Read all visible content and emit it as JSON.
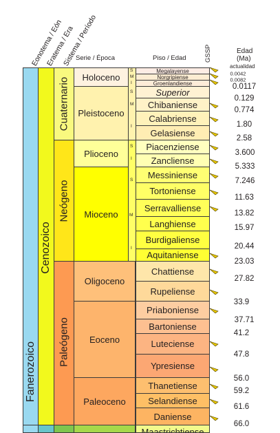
{
  "headers": {
    "eonothem": "Eonotema / Eón",
    "erathem": "Eratema / Era",
    "system": "Sistema / Período",
    "series": "Serie / Época",
    "stage": "Piso / Edad",
    "gssp": "GSSP",
    "age_line1": "Edad",
    "age_line2": "(Ma)"
  },
  "eon": "Fanerozoico",
  "era": "Cenozoico",
  "systems": [
    "Cuaternario",
    "Neógeno",
    "Paleógeno"
  ],
  "series": [
    "Holoceno",
    "Pleistoceno",
    "Plioceno",
    "Mioceno",
    "Oligoceno",
    "Eoceno",
    "Paleoceno"
  ],
  "subdivision_marks": [
    "S",
    "M",
    "I",
    "S",
    "M",
    "I",
    "S",
    "I",
    "S",
    "M",
    "I"
  ],
  "stages": [
    "Megalayense",
    "Norgripiense",
    "Groenlandiense",
    "Superior",
    "Chibaniense",
    "Calabriense",
    "Gelasiense",
    "Piacenziense",
    "Zancliense",
    "Messiniense",
    "Tortoniense",
    "Serravalliense",
    "Langhiense",
    "Burdigaliense",
    "Aquitaniense",
    "Chattiense",
    "Rupeliense",
    "Priaboniense",
    "Bartoniense",
    "Luteciense",
    "Ypresiense",
    "Thanetiense",
    "Selandiense",
    "Daniense",
    "Maastrichtiense"
  ],
  "ages": {
    "present": "actualidad",
    "small": [
      "0.0042",
      "0.0082"
    ],
    "values": [
      "0.0117",
      "0.129",
      "0.774",
      "1.80",
      "2.58",
      "3.600",
      "5.333",
      "7.246",
      "11.63",
      "13.82",
      "15.97",
      "20.44",
      "23.03",
      "27.82",
      "33.9",
      "37.71",
      "41.2",
      "47.8",
      "56.0",
      "59.2",
      "61.6",
      "66.0"
    ]
  },
  "colors": {
    "eon": "#9ad9f0",
    "era": "#f2f91d",
    "quaternary": "#f9f97f",
    "neogene": "#ffe619",
    "paleogene": "#fd9a52",
    "holocene": "#fef2e0",
    "pleistocene": "#fff2ae",
    "pliocene": "#ffff99",
    "miocene": "#ffff00",
    "oligocene": "#fec07a",
    "eocene": "#fdb46c",
    "paleocene": "#fda75f",
    "gssp_mark": "#e8c800",
    "mesozoic": "#67c5ca"
  },
  "chart_data": {
    "type": "table",
    "title": "",
    "columns": [
      "Eonotema / Eón",
      "Eratema / Era",
      "Sistema / Período",
      "Serie / Época",
      "Piso / Edad",
      "GSSP",
      "Edad (Ma)"
    ],
    "rows": [
      {
        "eon": "Fanerozoico",
        "era": "Cenozoico",
        "system": "Cuaternario",
        "series": "Holoceno",
        "stage": "Megalayense",
        "base_age": "0.0042"
      },
      {
        "eon": "Fanerozoico",
        "era": "Cenozoico",
        "system": "Cuaternario",
        "series": "Holoceno",
        "stage": "Norgripiense",
        "base_age": "0.0082"
      },
      {
        "eon": "Fanerozoico",
        "era": "Cenozoico",
        "system": "Cuaternario",
        "series": "Holoceno",
        "stage": "Groenlandiense",
        "base_age": "0.0117"
      },
      {
        "eon": "Fanerozoico",
        "era": "Cenozoico",
        "system": "Cuaternario",
        "series": "Pleistoceno",
        "stage": "Superior",
        "base_age": "0.129"
      },
      {
        "eon": "Fanerozoico",
        "era": "Cenozoico",
        "system": "Cuaternario",
        "series": "Pleistoceno",
        "stage": "Chibaniense",
        "base_age": "0.774"
      },
      {
        "eon": "Fanerozoico",
        "era": "Cenozoico",
        "system": "Cuaternario",
        "series": "Pleistoceno",
        "stage": "Calabriense",
        "base_age": "1.80"
      },
      {
        "eon": "Fanerozoico",
        "era": "Cenozoico",
        "system": "Cuaternario",
        "series": "Pleistoceno",
        "stage": "Gelasiense",
        "base_age": "2.58"
      },
      {
        "eon": "Fanerozoico",
        "era": "Cenozoico",
        "system": "Neógeno",
        "series": "Plioceno",
        "stage": "Piacenziense",
        "base_age": "3.600"
      },
      {
        "eon": "Fanerozoico",
        "era": "Cenozoico",
        "system": "Neógeno",
        "series": "Plioceno",
        "stage": "Zancliense",
        "base_age": "5.333"
      },
      {
        "eon": "Fanerozoico",
        "era": "Cenozoico",
        "system": "Neógeno",
        "series": "Mioceno",
        "stage": "Messiniense",
        "base_age": "7.246"
      },
      {
        "eon": "Fanerozoico",
        "era": "Cenozoico",
        "system": "Neógeno",
        "series": "Mioceno",
        "stage": "Tortoniense",
        "base_age": "11.63"
      },
      {
        "eon": "Fanerozoico",
        "era": "Cenozoico",
        "system": "Neógeno",
        "series": "Mioceno",
        "stage": "Serravalliense",
        "base_age": "13.82"
      },
      {
        "eon": "Fanerozoico",
        "era": "Cenozoico",
        "system": "Neógeno",
        "series": "Mioceno",
        "stage": "Langhiense",
        "base_age": "15.97"
      },
      {
        "eon": "Fanerozoico",
        "era": "Cenozoico",
        "system": "Neógeno",
        "series": "Mioceno",
        "stage": "Burdigaliense",
        "base_age": "20.44"
      },
      {
        "eon": "Fanerozoico",
        "era": "Cenozoico",
        "system": "Neógeno",
        "series": "Mioceno",
        "stage": "Aquitaniense",
        "base_age": "23.03"
      },
      {
        "eon": "Fanerozoico",
        "era": "Cenozoico",
        "system": "Paleógeno",
        "series": "Oligoceno",
        "stage": "Chattiense",
        "base_age": "27.82"
      },
      {
        "eon": "Fanerozoico",
        "era": "Cenozoico",
        "system": "Paleógeno",
        "series": "Oligoceno",
        "stage": "Rupeliense",
        "base_age": "33.9"
      },
      {
        "eon": "Fanerozoico",
        "era": "Cenozoico",
        "system": "Paleógeno",
        "series": "Eoceno",
        "stage": "Priaboniense",
        "base_age": "37.71"
      },
      {
        "eon": "Fanerozoico",
        "era": "Cenozoico",
        "system": "Paleógeno",
        "series": "Eoceno",
        "stage": "Bartoniense",
        "base_age": "41.2"
      },
      {
        "eon": "Fanerozoico",
        "era": "Cenozoico",
        "system": "Paleógeno",
        "series": "Eoceno",
        "stage": "Luteciense",
        "base_age": "47.8"
      },
      {
        "eon": "Fanerozoico",
        "era": "Cenozoico",
        "system": "Paleógeno",
        "series": "Eoceno",
        "stage": "Ypresiense",
        "base_age": "56.0"
      },
      {
        "eon": "Fanerozoico",
        "era": "Cenozoico",
        "system": "Paleógeno",
        "series": "Paleoceno",
        "stage": "Thanetiense",
        "base_age": "59.2"
      },
      {
        "eon": "Fanerozoico",
        "era": "Cenozoico",
        "system": "Paleógeno",
        "series": "Paleoceno",
        "stage": "Selandiense",
        "base_age": "61.6"
      },
      {
        "eon": "Fanerozoico",
        "era": "Cenozoico",
        "system": "Paleógeno",
        "series": "Paleoceno",
        "stage": "Daniense",
        "base_age": "66.0"
      }
    ]
  }
}
